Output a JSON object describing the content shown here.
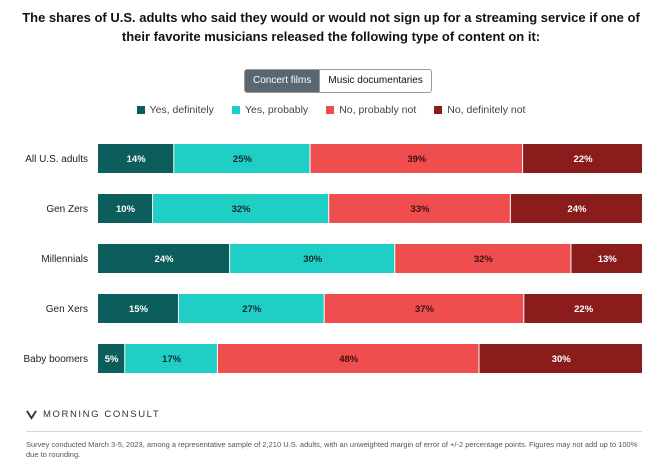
{
  "title": "The shares of U.S. adults who said they would or would not sign up for a streaming service if one of their favorite musicians released the following type of content on it:",
  "toggle": {
    "options": [
      "Concert films",
      "Music documentaries"
    ],
    "selected": "Concert films"
  },
  "brand": "MORNING CONSULT",
  "footnote": "Survey conducted March 3-5, 2023, among a representative sample of 2,210 U.S. adults, with an unweighted margin of error of +/-2 percentage points. Figures may not add up to 100% due to rounding.",
  "chart_data": {
    "type": "bar",
    "orientation": "horizontal",
    "stacked": true,
    "categories": [
      "All U.S. adults",
      "Gen Zers",
      "Millennials",
      "Gen Xers",
      "Baby boomers"
    ],
    "series": [
      {
        "name": "Yes, definitely",
        "color": "#0b5e5c",
        "values": [
          14,
          10,
          24,
          15,
          5
        ]
      },
      {
        "name": "Yes, probably",
        "color": "#1fcfc5",
        "values": [
          25,
          32,
          30,
          27,
          17
        ]
      },
      {
        "name": "No, probably not",
        "color": "#f04e4e",
        "values": [
          39,
          33,
          32,
          37,
          48
        ]
      },
      {
        "name": "No, definitely not",
        "color": "#8a1c1c",
        "values": [
          22,
          24,
          13,
          22,
          30
        ]
      }
    ],
    "legend_position": "top",
    "grid": false
  }
}
